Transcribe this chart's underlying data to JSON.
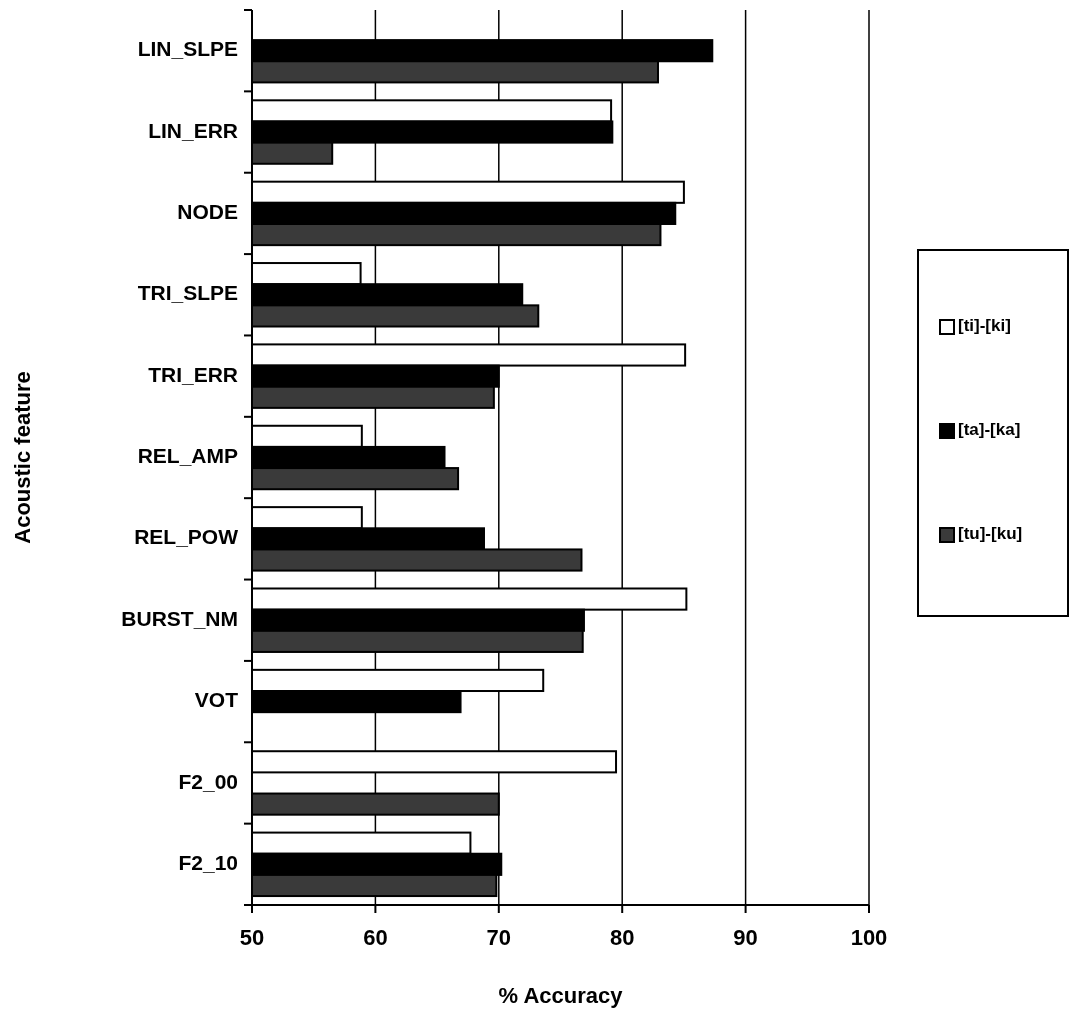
{
  "chart_data": {
    "type": "bar",
    "orientation": "horizontal",
    "xlabel": "% Accuracy",
    "ylabel": "Acoustic feature",
    "categories": [
      "LIN_SLPE",
      "LIN_ERR",
      "NODE",
      "TRI_SLPE",
      "TRI_ERR",
      "REL_AMP",
      "REL_POW",
      "BURST_NM",
      "VOT",
      "F2_00",
      "F2_10"
    ],
    "series": [
      {
        "name": "[ti]-[ki]",
        "color": "#ffffff",
        "values": [
          null,
          79.1,
          85.0,
          58.8,
          85.1,
          58.9,
          58.9,
          85.2,
          73.6,
          79.5,
          67.7
        ]
      },
      {
        "name": "[ta]-[ka]",
        "color": "#000000",
        "values": [
          87.3,
          79.2,
          84.3,
          71.9,
          70.0,
          65.6,
          68.8,
          76.9,
          66.9,
          null,
          70.2
        ]
      },
      {
        "name": "[tu]-[ku]",
        "color": "#3a3a3a",
        "values": [
          82.9,
          56.5,
          83.1,
          73.2,
          69.6,
          66.7,
          76.7,
          76.8,
          null,
          70.0,
          69.8
        ]
      }
    ],
    "xlim": [
      50,
      100
    ],
    "xticks": [
      50,
      60,
      70,
      80,
      90,
      100
    ],
    "grid": "x",
    "legend": "right"
  }
}
